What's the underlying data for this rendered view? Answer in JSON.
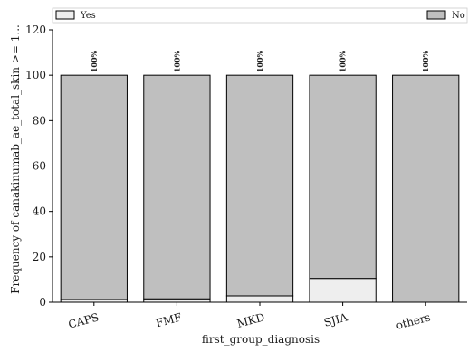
{
  "chart_data": {
    "type": "bar",
    "stacked": true,
    "title": "",
    "xlabel": "first_group_diagnosis",
    "ylabel": "Frequency of canakinumab_ae_total_skin >= 1...",
    "ylim": [
      0,
      120
    ],
    "yticks": [
      "0",
      "20",
      "40",
      "60",
      "80",
      "100",
      "120"
    ],
    "categories": [
      "CAPS",
      "FMF",
      "MKD",
      "SJIA",
      "others"
    ],
    "series": [
      {
        "name": "Yes",
        "color": "#eeeeee",
        "values": [
          1.2,
          1.5,
          2.8,
          10.5,
          0
        ]
      },
      {
        "name": "No",
        "color": "#bfbfbf",
        "values": [
          98.8,
          98.5,
          97.2,
          89.5,
          100
        ]
      }
    ],
    "total_labels": [
      "100%",
      "100%",
      "100%",
      "100%",
      "100%"
    ],
    "legend": {
      "position": "top",
      "entries": [
        "Yes",
        "No"
      ]
    },
    "grid": false
  }
}
